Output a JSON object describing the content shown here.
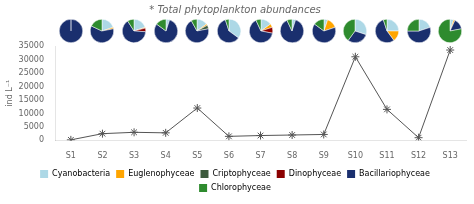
{
  "chart_data": {
    "type": "line",
    "title": "* Total phytoplankton abundances",
    "ylabel": "ind L⁻¹",
    "categories": [
      "S1",
      "S2",
      "S3",
      "S4",
      "S5",
      "S6",
      "S7",
      "S8",
      "S9",
      "S10",
      "S11",
      "S12",
      "S13"
    ],
    "values": [
      200,
      2500,
      3000,
      2800,
      12000,
      1500,
      1800,
      2000,
      2200,
      31000,
      11500,
      1000,
      33500
    ],
    "color": "#555555",
    "marker": "star",
    "ylim": [
      0,
      35000
    ],
    "yticks": [
      0,
      5000,
      10000,
      15000,
      20000,
      25000,
      30000,
      35000
    ],
    "grid": false,
    "composition": {
      "type": "pie",
      "series": [
        {
          "name": "Cyanobacteria",
          "color": "#add8e6",
          "values": [
            0,
            20,
            20,
            5,
            15,
            35,
            15,
            5,
            5,
            30,
            25,
            20,
            5
          ]
        },
        {
          "name": "Euglenophyceae",
          "color": "#ffa500",
          "values": [
            0,
            2,
            1,
            0,
            2,
            0,
            5,
            0,
            15,
            0,
            15,
            0,
            2
          ]
        },
        {
          "name": "Criptophyceae",
          "color": "#3d5a3d",
          "values": [
            0,
            0,
            0,
            0,
            5,
            0,
            0,
            0,
            0,
            0,
            0,
            0,
            0
          ]
        },
        {
          "name": "Dinophyceae",
          "color": "#8b0000",
          "values": [
            0,
            0,
            5,
            0,
            0,
            0,
            8,
            0,
            0,
            0,
            0,
            0,
            0
          ]
        },
        {
          "name": "Bacillariophyceae",
          "color": "#1a2f6e",
          "values": [
            100,
            60,
            65,
            80,
            70,
            60,
            65,
            88,
            65,
            30,
            55,
            55,
            15
          ]
        },
        {
          "name": "Chlorophyceae",
          "color": "#2e8b2e",
          "values": [
            0,
            18,
            9,
            15,
            8,
            5,
            7,
            7,
            15,
            40,
            5,
            25,
            78
          ]
        }
      ]
    }
  }
}
